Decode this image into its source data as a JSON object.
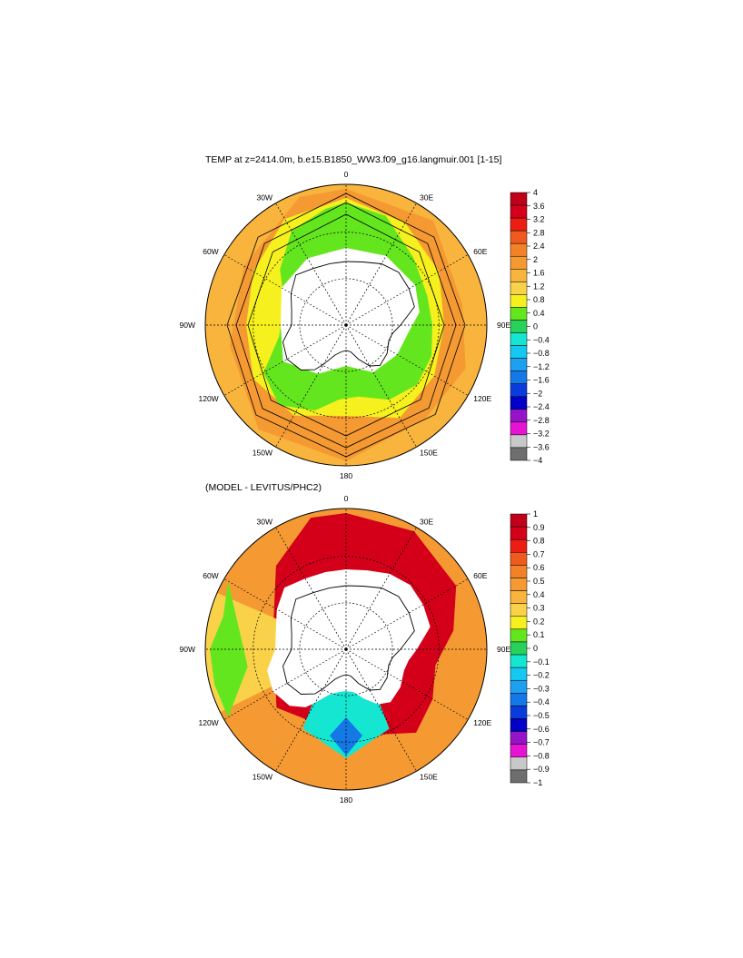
{
  "panels": [
    {
      "title": "TEMP at z=2414.0m, b.e15.B1850_WW3.f09_g16.langmuir.001 [1-15]",
      "lon_labels": [
        "0",
        "30E",
        "60E",
        "90E",
        "120E",
        "150E",
        "180",
        "150W",
        "120W",
        "90W",
        "60W",
        "30W"
      ],
      "colorbar": {
        "labels": [
          "4",
          "3.6",
          "3.2",
          "2.8",
          "2.4",
          "2",
          "1.6",
          "1.2",
          "0.8",
          "0.4",
          "0",
          "−0.4",
          "−0.8",
          "−1.2",
          "−1.6",
          "−2",
          "−2.4",
          "−2.8",
          "−3.2",
          "−3.6",
          "−4"
        ],
        "colors": [
          "#c0001a",
          "#d4001a",
          "#ec1e14",
          "#f05a1e",
          "#f28228",
          "#f59a32",
          "#f8b43c",
          "#fad24a",
          "#f5f01e",
          "#64e61e",
          "#28d25a",
          "#14e6d2",
          "#14c8f0",
          "#1ea0f0",
          "#1478e6",
          "#0a3cdc",
          "#0000c8",
          "#9614c8",
          "#e614d2",
          "#c8c8c8",
          "#6e6e6e"
        ]
      }
    },
    {
      "title": "(MODEL - LEVITUS/PHC2)",
      "lon_labels": [
        "0",
        "30E",
        "60E",
        "90E",
        "120E",
        "150E",
        "180",
        "150W",
        "120W",
        "90W",
        "60W",
        "30W"
      ],
      "colorbar": {
        "labels": [
          "1",
          "0.9",
          "0.8",
          "0.7",
          "0.6",
          "0.5",
          "0.4",
          "0.3",
          "0.2",
          "0.1",
          "0",
          "−0.1",
          "−0.2",
          "−0.3",
          "−0.4",
          "−0.5",
          "−0.6",
          "−0.7",
          "−0.8",
          "−0.9",
          "−1"
        ],
        "colors": [
          "#c0001a",
          "#d4001a",
          "#ec1e14",
          "#f05a1e",
          "#f28228",
          "#f59a32",
          "#f8b43c",
          "#fad24a",
          "#f5f01e",
          "#64e61e",
          "#28d25a",
          "#14e6d2",
          "#14c8f0",
          "#1ea0f0",
          "#1478e6",
          "#0a3cdc",
          "#0000c8",
          "#9614c8",
          "#e614d2",
          "#c8c8c8",
          "#6e6e6e"
        ]
      }
    }
  ]
}
